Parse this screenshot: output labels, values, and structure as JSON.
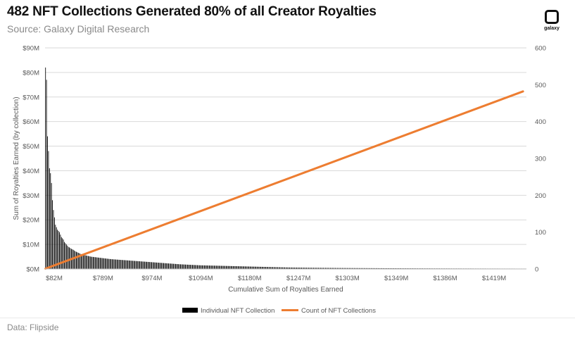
{
  "header": {
    "title": "482 NFT Collections Generated 80% of all Creator Royalties",
    "subtitle": "Source: Galaxy Digital Research"
  },
  "logo": {
    "text": "galaxy"
  },
  "footer": {
    "source": "Data: Flipside"
  },
  "colors": {
    "bars": "#000000",
    "line": "#ED7D31",
    "grid": "#d9d9d9",
    "axis_text": "#595959"
  },
  "chart_data": {
    "type": "bar",
    "title": "",
    "xlabel": "Cumulative Sum of Royalties Earned",
    "ylabel": "Sum of Royalties Earned (by collection)",
    "y2label": "",
    "ylim": [
      0,
      90
    ],
    "y2lim": [
      0,
      600
    ],
    "y_ticks": [
      "$0M",
      "$10M",
      "$20M",
      "$30M",
      "$40M",
      "$50M",
      "$60M",
      "$70M",
      "$80M",
      "$90M"
    ],
    "y2_ticks": [
      "0",
      "100",
      "200",
      "300",
      "400",
      "500",
      "600"
    ],
    "x_tick_labels": [
      "$82M",
      "$789M",
      "$974M",
      "$1094M",
      "$1180M",
      "$1247M",
      "$1303M",
      "$1349M",
      "$1386M",
      "$1419M"
    ],
    "grid": true,
    "legend_position": "bottom",
    "series": [
      {
        "name": "Individual NFT Collection",
        "type": "bar",
        "axis": "left",
        "unit": "$M",
        "values": [
          82,
          77,
          54,
          48,
          41,
          39,
          35,
          28,
          24,
          21,
          18,
          17,
          16,
          15.5,
          15,
          14,
          13,
          12.5,
          12,
          11,
          10.5,
          10,
          9.5,
          9,
          8.8,
          8.5,
          8.2,
          8,
          7.8,
          7.5,
          7.2,
          7,
          6.8,
          6.6,
          6.4,
          6.2,
          6,
          5.9,
          5.8,
          5.7,
          5.6,
          5.5,
          5.4,
          5.3,
          5.2,
          5.1,
          5,
          4.95,
          4.9,
          4.85,
          4.8,
          4.75,
          4.7,
          4.65,
          4.6,
          4.55,
          4.5,
          4.45,
          4.4,
          4.35,
          4.3,
          4.25,
          4.2,
          4.15,
          4.1,
          4.05,
          4,
          3.97,
          3.94,
          3.91,
          3.88,
          3.85,
          3.82,
          3.79,
          3.76,
          3.73,
          3.7,
          3.67,
          3.64,
          3.61,
          3.58,
          3.55,
          3.52,
          3.49,
          3.46,
          3.43,
          3.4,
          3.37,
          3.34,
          3.31,
          3.28,
          3.25,
          3.22,
          3.19,
          3.16,
          3.13,
          3.1,
          3.07,
          3.04,
          3.01,
          2.98,
          2.95,
          2.92,
          2.89,
          2.86,
          2.83,
          2.8,
          2.77,
          2.74,
          2.71,
          2.68,
          2.65,
          2.62,
          2.59,
          2.56,
          2.53,
          2.5,
          2.47,
          2.44,
          2.41,
          2.38,
          2.35,
          2.32,
          2.29,
          2.26,
          2.23,
          2.2,
          2.17,
          2.14,
          2.11,
          2.08,
          2.05,
          2.02,
          1.99,
          1.96,
          1.93,
          1.9,
          1.88,
          1.86,
          1.84,
          1.82,
          1.8,
          1.78,
          1.76,
          1.74,
          1.72,
          1.7,
          1.68,
          1.66,
          1.64,
          1.62,
          1.6,
          1.58,
          1.56,
          1.54,
          1.52,
          1.5,
          1.49,
          1.48,
          1.47,
          1.46,
          1.45,
          1.44,
          1.43,
          1.42,
          1.41,
          1.4,
          1.39,
          1.38,
          1.37,
          1.36,
          1.35,
          1.34,
          1.33,
          1.32,
          1.31,
          1.3,
          1.29,
          1.28,
          1.27,
          1.26,
          1.25,
          1.24,
          1.23,
          1.22,
          1.21,
          1.2,
          1.19,
          1.18,
          1.17,
          1.16,
          1.15,
          1.14,
          1.13,
          1.12,
          1.11,
          1.1,
          1.09,
          1.08,
          1.07,
          1.06,
          1.05,
          1.04,
          1.03,
          1.02,
          1.01,
          1,
          0.99,
          0.98,
          0.97,
          0.96,
          0.95,
          0.94,
          0.93,
          0.92,
          0.91,
          0.9,
          0.89,
          0.88,
          0.87,
          0.86,
          0.85,
          0.84,
          0.83,
          0.82,
          0.81,
          0.8,
          0.79,
          0.78,
          0.77,
          0.76,
          0.75,
          0.74,
          0.73,
          0.72,
          0.71,
          0.7,
          0.69,
          0.68,
          0.67,
          0.66,
          0.65,
          0.64,
          0.63,
          0.62,
          0.61,
          0.6,
          0.6,
          0.59,
          0.59,
          0.58,
          0.58,
          0.57,
          0.57,
          0.56,
          0.56,
          0.55,
          0.55,
          0.54,
          0.54,
          0.53,
          0.53,
          0.52,
          0.52,
          0.51,
          0.51,
          0.5,
          0.5,
          0.5,
          0.49,
          0.49,
          0.49,
          0.48,
          0.48,
          0.48,
          0.47,
          0.47,
          0.47,
          0.46,
          0.46,
          0.46,
          0.45,
          0.45,
          0.45,
          0.44,
          0.44,
          0.44,
          0.43,
          0.43,
          0.43,
          0.42,
          0.42,
          0.42,
          0.41,
          0.41,
          0.41,
          0.4,
          0.4,
          0.4,
          0.4,
          0.39,
          0.39,
          0.39,
          0.39,
          0.38,
          0.38,
          0.38,
          0.38,
          0.37,
          0.37,
          0.37,
          0.37,
          0.36,
          0.36,
          0.36,
          0.36,
          0.35,
          0.35,
          0.35,
          0.35,
          0.35,
          0.34,
          0.34,
          0.34,
          0.34,
          0.34,
          0.33,
          0.33,
          0.33,
          0.33,
          0.33,
          0.32,
          0.32,
          0.32,
          0.32,
          0.32,
          0.31,
          0.31,
          0.31,
          0.31,
          0.31,
          0.3,
          0.3,
          0.3,
          0.3,
          0.3,
          0.3,
          0.29,
          0.29,
          0.29,
          0.29,
          0.29,
          0.29,
          0.28,
          0.28,
          0.28,
          0.28,
          0.28,
          0.28,
          0.27,
          0.27,
          0.27,
          0.27,
          0.27,
          0.27,
          0.27,
          0.26,
          0.26,
          0.26,
          0.26,
          0.26,
          0.26,
          0.26,
          0.25,
          0.25,
          0.25,
          0.25,
          0.25,
          0.25,
          0.25,
          0.25,
          0.24,
          0.24,
          0.24,
          0.24,
          0.24,
          0.24,
          0.24,
          0.24,
          0.23,
          0.23,
          0.23,
          0.23,
          0.23,
          0.23,
          0.23,
          0.23,
          0.23,
          0.22,
          0.22,
          0.22,
          0.22,
          0.22,
          0.22,
          0.22,
          0.22,
          0.22,
          0.22,
          0.21,
          0.21,
          0.21,
          0.21,
          0.21,
          0.21,
          0.21,
          0.21,
          0.21,
          0.21,
          0.21,
          0.2,
          0.2,
          0.2,
          0.2,
          0.2,
          0.2,
          0.2,
          0.2,
          0.2,
          0.2,
          0.2,
          0.2,
          0.19,
          0.19,
          0.19,
          0.19,
          0.19,
          0.19,
          0.19,
          0.19,
          0.19,
          0.19,
          0.19,
          0.19,
          0.19,
          0.18,
          0.18,
          0.18,
          0.18,
          0.18,
          0.18,
          0.18,
          0.18,
          0.18,
          0.18,
          0.18,
          0.18,
          0.18,
          0.18,
          0.17,
          0.17,
          0.17,
          0.17,
          0.17,
          0.17,
          0.17,
          0.17,
          0.17,
          0.17,
          0.17,
          0.17,
          0.17,
          0.17,
          0.17,
          0.16,
          0.16,
          0.16,
          0.16,
          0.16,
          0.16,
          0.16,
          0.16,
          0.16,
          0.16,
          0.16,
          0.16
        ]
      },
      {
        "name": "Count of NFT Collections",
        "type": "line",
        "axis": "right",
        "x": [
          1,
          482
        ],
        "values": [
          1,
          482
        ]
      }
    ]
  }
}
